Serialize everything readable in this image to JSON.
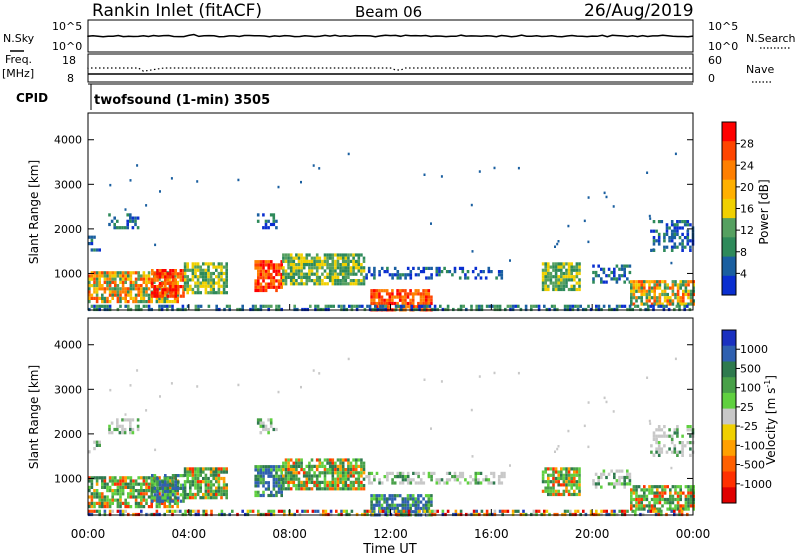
{
  "header": {
    "site": "Rankin Inlet (fitACF)",
    "beam": "Beam 06",
    "date": "26/Aug/2019"
  },
  "top_panels": {
    "nsky_label": "N.Sky",
    "nsky_ticks": [
      "10^5",
      "10^0"
    ],
    "nsearch_label": "N.Search",
    "nsearch_ticks": [
      "10^5",
      "10^0"
    ],
    "freq_label_1": "Freq.",
    "freq_label_2": "[MHz]",
    "freq_ticks": [
      "18",
      "8"
    ],
    "nave_label": "Nave",
    "nave_ticks": [
      "60",
      "0"
    ],
    "cpid_label": "CPID",
    "cpid_value": "twofsound (1-min) 3505"
  },
  "chart_data": [
    {
      "type": "heatmap",
      "name_key": "power",
      "ylabel": "Slant Range [km]",
      "xlabel": "Time UT",
      "x_ticks": [
        "00:00",
        "04:00",
        "08:00",
        "12:00",
        "16:00",
        "20:00",
        "00:00"
      ],
      "y_ticks": [
        "1000",
        "2000",
        "3000",
        "4000"
      ],
      "ylim": [
        180,
        4600
      ],
      "xlim_hours": [
        0,
        24
      ],
      "colorbar": {
        "label": "Power [dB]",
        "ticks": [
          "28",
          "24",
          "20",
          "16",
          "12",
          "8",
          "4"
        ],
        "colors": [
          "#ff0000",
          "#ff4500",
          "#ff7f00",
          "#ffb000",
          "#f0d000",
          "#55a060",
          "#2e8a5a",
          "#1a5fa0",
          "#0a2fd0"
        ]
      }
    },
    {
      "type": "heatmap",
      "name_key": "velocity",
      "ylabel": "Slant Range [km]",
      "xlabel": "Time UT",
      "x_ticks": [
        "00:00",
        "04:00",
        "08:00",
        "12:00",
        "16:00",
        "20:00",
        "00:00"
      ],
      "y_ticks": [
        "1000",
        "2000",
        "3000",
        "4000"
      ],
      "ylim": [
        180,
        4600
      ],
      "xlim_hours": [
        0,
        24
      ],
      "colorbar": {
        "label": "Velocity [m s",
        "label_sup": "-1",
        "label_end": "]",
        "ticks": [
          "1000",
          "500",
          "100",
          "25",
          "-25",
          "-100",
          "-500",
          "-1000"
        ],
        "colors": [
          "#1a30c0",
          "#2f60b0",
          "#2e7a4e",
          "#48a048",
          "#60d040",
          "#c8c8c8",
          "#f0d000",
          "#ffa000",
          "#ff6000",
          "#ff3000",
          "#e00000"
        ]
      }
    }
  ],
  "echo_regions": [
    {
      "t0": 0.0,
      "t1": 3.6,
      "r0": 400,
      "r1": 1050,
      "kind": "core"
    },
    {
      "t0": 2.5,
      "t1": 3.8,
      "r0": 500,
      "r1": 1100,
      "kind": "strong"
    },
    {
      "t0": 0.0,
      "t1": 0.5,
      "r0": 1500,
      "r1": 1850,
      "kind": "weak"
    },
    {
      "t0": 0.8,
      "t1": 2.0,
      "r0": 2050,
      "r1": 2350,
      "kind": "weak"
    },
    {
      "t0": 3.8,
      "t1": 5.5,
      "r0": 600,
      "r1": 1250,
      "kind": "mid"
    },
    {
      "t0": 6.7,
      "t1": 7.5,
      "r0": 2000,
      "r1": 2350,
      "kind": "weak"
    },
    {
      "t0": 6.6,
      "t1": 7.7,
      "r0": 650,
      "r1": 1300,
      "kind": "strong"
    },
    {
      "t0": 7.7,
      "t1": 11.0,
      "r0": 800,
      "r1": 1450,
      "kind": "mid"
    },
    {
      "t0": 11.2,
      "t1": 13.6,
      "r0": 200,
      "r1": 650,
      "kind": "strong"
    },
    {
      "t0": 11.0,
      "t1": 16.5,
      "r0": 900,
      "r1": 1150,
      "kind": "weak"
    },
    {
      "t0": 18.0,
      "t1": 19.5,
      "r0": 650,
      "r1": 1250,
      "kind": "mid"
    },
    {
      "t0": 20.0,
      "t1": 21.5,
      "r0": 800,
      "r1": 1200,
      "kind": "weak"
    },
    {
      "t0": 21.5,
      "t1": 24.0,
      "r0": 300,
      "r1": 850,
      "kind": "core"
    },
    {
      "t0": 22.3,
      "t1": 24.0,
      "r0": 1500,
      "r1": 2200,
      "kind": "weak"
    },
    {
      "t0": 0.0,
      "t1": 24.0,
      "r0": 180,
      "r1": 300,
      "kind": "ground"
    }
  ]
}
